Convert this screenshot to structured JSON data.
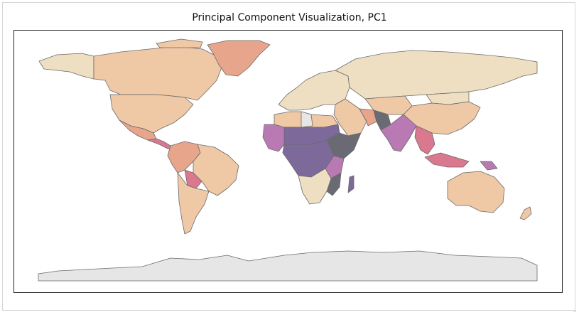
{
  "figure": {
    "title": "Principal Component Visualization, PC1"
  },
  "palette": {
    "low": "#efdfc2",
    "mid_low": "#efc8a5",
    "mid": "#e7a58c",
    "mid_high": "#d9788e",
    "high": "#b97ab3",
    "very_high": "#7d6a9b",
    "max": "#6a6a74",
    "no_data": "#e6e6e6",
    "border": "#6a6a6a"
  },
  "chart_data": {
    "type": "choropleth",
    "variable": "PC1",
    "legend": "none",
    "grid": false,
    "regions": [
      {
        "name": "Canada",
        "level": "mid_low"
      },
      {
        "name": "Alaska",
        "level": "low"
      },
      {
        "name": "Greenland",
        "level": "mid"
      },
      {
        "name": "United States",
        "level": "mid_low"
      },
      {
        "name": "Mexico",
        "level": "mid"
      },
      {
        "name": "Central America",
        "level": "mid_high"
      },
      {
        "name": "Brazil",
        "level": "mid_low"
      },
      {
        "name": "Andean countries",
        "level": "mid"
      },
      {
        "name": "Bolivia",
        "level": "mid_high"
      },
      {
        "name": "Argentina / Chile",
        "level": "mid_low"
      },
      {
        "name": "Western Europe",
        "level": "low"
      },
      {
        "name": "Russia",
        "level": "low"
      },
      {
        "name": "Libya",
        "level": "no_data"
      },
      {
        "name": "North Africa",
        "level": "mid_low"
      },
      {
        "name": "West Africa",
        "level": "high"
      },
      {
        "name": "Sahel",
        "level": "very_high"
      },
      {
        "name": "Ethiopia / Somalia",
        "level": "max"
      },
      {
        "name": "Central Africa",
        "level": "very_high"
      },
      {
        "name": "East Africa",
        "level": "high"
      },
      {
        "name": "Southern Africa",
        "level": "low"
      },
      {
        "name": "Mozambique",
        "level": "max"
      },
      {
        "name": "Madagascar",
        "level": "very_high"
      },
      {
        "name": "Middle East",
        "level": "mid_low"
      },
      {
        "name": "Iran",
        "level": "mid"
      },
      {
        "name": "Afghanistan / Pakistan",
        "level": "max"
      },
      {
        "name": "India",
        "level": "high"
      },
      {
        "name": "Kazakhstan / Central Asia",
        "level": "mid_low"
      },
      {
        "name": "China",
        "level": "mid_low"
      },
      {
        "name": "Mongolia",
        "level": "low"
      },
      {
        "name": "Southeast Asia",
        "level": "mid_high"
      },
      {
        "name": "Indonesia",
        "level": "mid_high"
      },
      {
        "name": "Papua New Guinea",
        "level": "high"
      },
      {
        "name": "Australia",
        "level": "mid_low"
      },
      {
        "name": "New Zealand",
        "level": "mid_low"
      },
      {
        "name": "Antarctica",
        "level": "no_data"
      }
    ]
  }
}
